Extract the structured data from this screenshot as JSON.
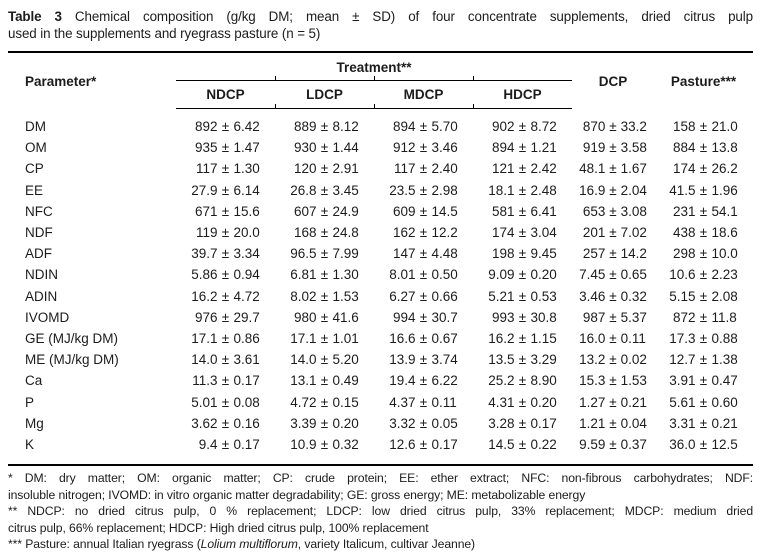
{
  "caption": {
    "line1_bold": "Table 3",
    "line1_rest": " Chemical composition (g/kg DM; mean ± SD) of four concentrate supplements, dried citrus pulp",
    "line2": "used in the supplements and ryegrass pasture (n = 5)"
  },
  "header": {
    "parameter": "Parameter*",
    "treatment_group": "Treatment**",
    "treatments": [
      "NDCP",
      "LDCP",
      "MDCP",
      "HDCP"
    ],
    "dcp": "DCP",
    "pasture": "Pasture***"
  },
  "rows": [
    {
      "param": "DM",
      "values": [
        "892 ± 6.42",
        "889 ± 8.12",
        "894 ± 5.70",
        "902 ± 8.72",
        "870 ± 33.2",
        "158 ± 21.0"
      ]
    },
    {
      "param": "OM",
      "values": [
        "935 ± 1.47",
        "930 ± 1.44",
        "912 ± 3.46",
        "894 ± 1.21",
        "919 ± 3.58",
        "884 ± 13.8"
      ]
    },
    {
      "param": "CP",
      "values": [
        "117 ± 1.30",
        "120 ± 2.91",
        "117 ± 2.40",
        "121 ± 2.42",
        "48.1 ± 1.67",
        "174 ± 26.2"
      ]
    },
    {
      "param": "EE",
      "values": [
        "27.9 ± 6.14",
        "26.8 ± 3.45",
        "23.5 ± 2.98",
        "18.1 ± 2.48",
        "16.9 ± 2.04",
        "41.5 ± 1.96"
      ]
    },
    {
      "param": "NFC",
      "values": [
        "671 ± 15.6",
        "607 ± 24.9",
        "609 ± 14.5",
        "581 ± 6.41",
        "653 ± 3.08",
        "231 ± 54.1"
      ]
    },
    {
      "param": "NDF",
      "values": [
        "119 ± 20.0",
        "168 ± 24.8",
        "162 ± 12.2",
        "174 ± 3.04",
        "201 ± 7.02",
        "438 ± 18.6"
      ]
    },
    {
      "param": "ADF",
      "values": [
        "39.7 ± 3.34",
        "96.5 ± 7.99",
        "147 ± 4.48",
        "198 ± 9.45",
        "257 ± 14.2",
        "298 ± 10.0"
      ]
    },
    {
      "param": "NDIN",
      "values": [
        "5.86 ± 0.94",
        "6.81 ± 1.30",
        "8.01 ± 0.50",
        "9.09 ± 0.20",
        "7.45 ± 0.65",
        "10.6 ± 2.23"
      ]
    },
    {
      "param": "ADIN",
      "values": [
        "16.2 ± 4.72",
        "8.02 ± 1.53",
        "6.27 ± 0.66",
        "5.21 ± 0.53",
        "3.46 ± 0.32",
        "5.15 ± 2.08"
      ]
    },
    {
      "param": "IVOMD",
      "values": [
        "976 ± 29.7",
        "980 ± 41.6",
        "994 ± 30.7",
        "993 ± 30.8",
        "987 ± 5.37",
        "872 ± 11.8"
      ]
    },
    {
      "param": "GE (MJ/kg DM)",
      "values": [
        "17.1 ± 0.86",
        "17.1 ± 1.01",
        "16.6 ± 0.67",
        "16.2 ± 1.15",
        "16.0 ± 0.11",
        "17.3 ± 0.88"
      ]
    },
    {
      "param": "ME (MJ/kg DM)",
      "values": [
        "14.0 ± 3.61",
        "14.0 ± 5.20",
        "13.9 ± 3.74",
        "13.5 ± 3.29",
        "13.2 ± 0.02",
        "12.7 ± 1.38"
      ]
    },
    {
      "param": "Ca",
      "values": [
        "11.3 ± 0.17",
        "13.1 ± 0.49",
        "19.4 ± 6.22",
        "25.2 ± 8.90",
        "15.3 ± 1.53",
        "3.91 ± 0.47"
      ]
    },
    {
      "param": "P",
      "values": [
        "5.01 ± 0.08",
        "4.72 ± 0.15",
        "4.37 ± 0.11",
        "4.31 ± 0.20",
        "1.27 ± 0.21",
        "5.61 ± 0.60"
      ]
    },
    {
      "param": "Mg",
      "values": [
        "3.62 ± 0.16",
        "3.39 ± 0.20",
        "3.32 ± 0.05",
        "3.28 ± 0.17",
        "1.21 ± 0.04",
        "3.31 ± 0.21"
      ]
    },
    {
      "param": "K",
      "values": [
        "9.4 ± 0.17",
        "10.9 ± 0.32",
        "12.6 ± 0.17",
        "14.5 ± 0.22",
        "9.59 ± 0.37",
        "36.0 ± 12.5"
      ]
    }
  ],
  "footnotes": [
    {
      "justify": true,
      "text": "* DM: dry matter; OM: organic matter; CP: crude protein; EE: ether extract; NFC: non-fibrous carbohydrates; NDF:"
    },
    {
      "justify": false,
      "text": "insoluble nitrogen; IVOMD: in vitro organic matter degradability; GE: gross energy; ME: metabolizable energy"
    },
    {
      "justify": true,
      "text": "** NDCP: no dried citrus pulp, 0 % replacement; LDCP: low dried citrus pulp, 33% replacement; MDCP: medium dried"
    },
    {
      "justify": false,
      "text": "citrus pulp, 66% replacement; HDCP: High dried citrus pulp, 100% replacement"
    },
    {
      "justify": false,
      "parts": {
        "prefix": "*** Pasture: annual Italian ryegrass (",
        "italic": "Lolium multiflorum",
        "suffix": ", variety Italicum, cultivar Jeanne)"
      }
    }
  ],
  "colors": {
    "text": "#1c1c1c",
    "rule": "#000000",
    "background": "#ffffff"
  }
}
